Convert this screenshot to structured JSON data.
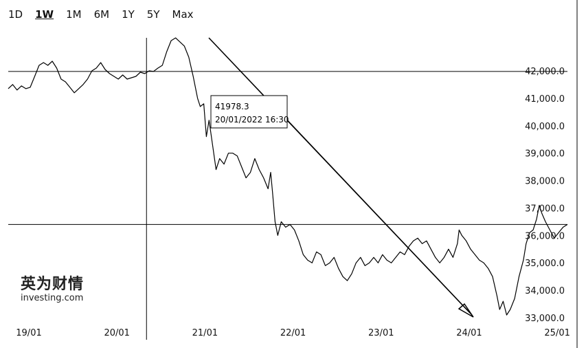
{
  "tabs": [
    {
      "label": "1D",
      "active": false
    },
    {
      "label": "1W",
      "active": true
    },
    {
      "label": "1M",
      "active": false
    },
    {
      "label": "6M",
      "active": false
    },
    {
      "label": "1Y",
      "active": false
    },
    {
      "label": "5Y",
      "active": false
    },
    {
      "label": "Max",
      "active": false
    }
  ],
  "tooltip": {
    "value": "41978.3",
    "datetime": "20/01/2022 16:30"
  },
  "watermark": {
    "line1": "英为财情",
    "line2": "investing.com"
  },
  "colors": {
    "line": "#000000",
    "arrow": "#000000",
    "crosshair": "#000000"
  },
  "chart_data": {
    "type": "line",
    "title": "",
    "xlabel": "",
    "ylabel": "",
    "y_axis_position": "right",
    "ylim": [
      32900,
      43000
    ],
    "y_ticks": [
      {
        "value": 42000,
        "label": "42,000.0"
      },
      {
        "value": 41000,
        "label": "41,000.0"
      },
      {
        "value": 40000,
        "label": "40,000.0"
      },
      {
        "value": 39000,
        "label": "39,000.0"
      },
      {
        "value": 38000,
        "label": "38,000.0"
      },
      {
        "value": 37000,
        "label": "37,000.0"
      },
      {
        "value": 36000,
        "label": "36,000.0"
      },
      {
        "value": 35000,
        "label": "35,000.0"
      },
      {
        "value": 34000,
        "label": "34,000.0"
      },
      {
        "value": 33000,
        "label": "33,000.0"
      }
    ],
    "xlim": [
      19.0,
      25.35
    ],
    "x_ticks": [
      {
        "value": 19,
        "label": "19/01"
      },
      {
        "value": 20,
        "label": "20/01"
      },
      {
        "value": 21,
        "label": "21/01"
      },
      {
        "value": 22,
        "label": "22/01"
      },
      {
        "value": 23,
        "label": "23/01"
      },
      {
        "value": 24,
        "label": "24/01"
      },
      {
        "value": 25,
        "label": "25/01"
      }
    ],
    "crosshair": {
      "x": 20.57,
      "y": 41978.3
    },
    "reference_line": {
      "y": 36400
    },
    "series": [
      {
        "points": [
          [
            19.0,
            41350
          ],
          [
            19.05,
            41500
          ],
          [
            19.1,
            41300
          ],
          [
            19.15,
            41450
          ],
          [
            19.2,
            41350
          ],
          [
            19.25,
            41400
          ],
          [
            19.3,
            41800
          ],
          [
            19.35,
            42200
          ],
          [
            19.4,
            42300
          ],
          [
            19.45,
            42200
          ],
          [
            19.5,
            42350
          ],
          [
            19.55,
            42100
          ],
          [
            19.6,
            41700
          ],
          [
            19.65,
            41600
          ],
          [
            19.7,
            41400
          ],
          [
            19.75,
            41200
          ],
          [
            19.8,
            41350
          ],
          [
            19.85,
            41500
          ],
          [
            19.9,
            41700
          ],
          [
            19.95,
            42000
          ],
          [
            20.0,
            42100
          ],
          [
            20.05,
            42300
          ],
          [
            20.1,
            42050
          ],
          [
            20.15,
            41900
          ],
          [
            20.2,
            41800
          ],
          [
            20.25,
            41700
          ],
          [
            20.3,
            41850
          ],
          [
            20.35,
            41700
          ],
          [
            20.4,
            41750
          ],
          [
            20.45,
            41800
          ],
          [
            20.5,
            41950
          ],
          [
            20.55,
            41900
          ],
          [
            20.6,
            42000
          ],
          [
            20.65,
            41980
          ],
          [
            20.7,
            42100
          ],
          [
            20.75,
            42200
          ],
          [
            20.8,
            42700
          ],
          [
            20.85,
            43100
          ],
          [
            20.9,
            43200
          ],
          [
            20.95,
            43050
          ],
          [
            21.0,
            42900
          ],
          [
            21.05,
            42500
          ],
          [
            21.1,
            41800
          ],
          [
            21.15,
            41000
          ],
          [
            21.18,
            40700
          ],
          [
            21.22,
            40800
          ],
          [
            21.25,
            39600
          ],
          [
            21.28,
            40200
          ],
          [
            21.32,
            39300
          ],
          [
            21.36,
            38400
          ],
          [
            21.4,
            38800
          ],
          [
            21.45,
            38600
          ],
          [
            21.5,
            39000
          ],
          [
            21.55,
            39000
          ],
          [
            21.6,
            38900
          ],
          [
            21.65,
            38500
          ],
          [
            21.7,
            38100
          ],
          [
            21.75,
            38300
          ],
          [
            21.8,
            38800
          ],
          [
            21.85,
            38400
          ],
          [
            21.9,
            38100
          ],
          [
            21.95,
            37700
          ],
          [
            21.98,
            38300
          ],
          [
            22.0,
            37600
          ],
          [
            22.03,
            36500
          ],
          [
            22.06,
            36000
          ],
          [
            22.1,
            36500
          ],
          [
            22.15,
            36300
          ],
          [
            22.2,
            36400
          ],
          [
            22.25,
            36200
          ],
          [
            22.3,
            35800
          ],
          [
            22.35,
            35300
          ],
          [
            22.4,
            35100
          ],
          [
            22.45,
            35000
          ],
          [
            22.5,
            35400
          ],
          [
            22.55,
            35300
          ],
          [
            22.6,
            34900
          ],
          [
            22.65,
            35000
          ],
          [
            22.7,
            35200
          ],
          [
            22.75,
            34800
          ],
          [
            22.8,
            34500
          ],
          [
            22.85,
            34350
          ],
          [
            22.9,
            34600
          ],
          [
            22.95,
            35000
          ],
          [
            23.0,
            35200
          ],
          [
            23.05,
            34900
          ],
          [
            23.1,
            35000
          ],
          [
            23.15,
            35200
          ],
          [
            23.2,
            35000
          ],
          [
            23.25,
            35300
          ],
          [
            23.3,
            35100
          ],
          [
            23.35,
            35000
          ],
          [
            23.4,
            35200
          ],
          [
            23.45,
            35400
          ],
          [
            23.5,
            35300
          ],
          [
            23.55,
            35600
          ],
          [
            23.6,
            35800
          ],
          [
            23.65,
            35900
          ],
          [
            23.7,
            35700
          ],
          [
            23.75,
            35800
          ],
          [
            23.8,
            35500
          ],
          [
            23.85,
            35200
          ],
          [
            23.9,
            35000
          ],
          [
            23.95,
            35200
          ],
          [
            24.0,
            35500
          ],
          [
            24.05,
            35200
          ],
          [
            24.1,
            35700
          ],
          [
            24.12,
            36200
          ],
          [
            24.15,
            36000
          ],
          [
            24.2,
            35800
          ],
          [
            24.25,
            35500
          ],
          [
            24.3,
            35300
          ],
          [
            24.35,
            35100
          ],
          [
            24.4,
            35000
          ],
          [
            24.45,
            34800
          ],
          [
            24.5,
            34500
          ],
          [
            24.55,
            33800
          ],
          [
            24.58,
            33300
          ],
          [
            24.62,
            33600
          ],
          [
            24.66,
            33100
          ],
          [
            24.7,
            33300
          ],
          [
            24.75,
            33700
          ],
          [
            24.8,
            34500
          ],
          [
            24.85,
            35100
          ],
          [
            24.88,
            35700
          ],
          [
            24.92,
            36100
          ],
          [
            24.96,
            36200
          ],
          [
            25.0,
            36600
          ],
          [
            25.03,
            37100
          ],
          [
            25.06,
            36800
          ],
          [
            25.1,
            36500
          ],
          [
            25.15,
            36200
          ],
          [
            25.2,
            35900
          ],
          [
            25.25,
            36100
          ],
          [
            25.3,
            36300
          ],
          [
            25.35,
            36400
          ]
        ]
      }
    ]
  }
}
